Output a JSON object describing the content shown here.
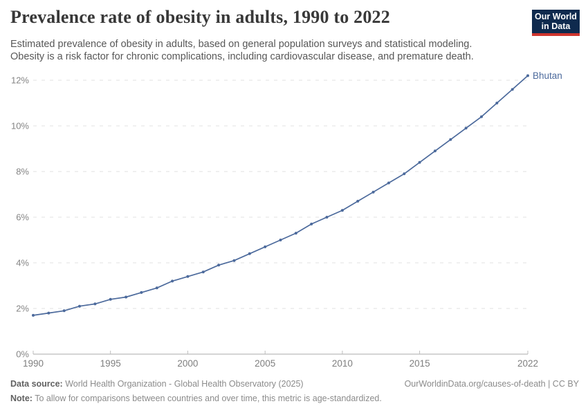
{
  "header": {
    "title": "Prevalence rate of obesity in adults, 1990 to 2022",
    "subtitle_line1": "Estimated prevalence of obesity in adults, based on general population surveys and statistical modeling.",
    "subtitle_line2": "Obesity is a risk factor for chronic complications, including cardiovascular disease, and premature death.",
    "logo": {
      "line1": "Our World",
      "line2": "in Data",
      "bg_color": "#0f2a4e",
      "accent_color": "#cf352e"
    }
  },
  "chart_data": {
    "type": "line",
    "title": "Prevalence rate of obesity in adults, 1990 to 2022",
    "xlabel": "",
    "ylabel": "",
    "xlim": [
      1990,
      2022
    ],
    "ylim": [
      0,
      12
    ],
    "grid": "horizontal-dashed",
    "legend_position": "end-of-line-label",
    "x_ticks": [
      1990,
      1995,
      2000,
      2005,
      2010,
      2015,
      2022
    ],
    "y_ticks": [
      0,
      2,
      4,
      6,
      8,
      10,
      12
    ],
    "y_tick_labels": [
      "0%",
      "2%",
      "4%",
      "6%",
      "8%",
      "10%",
      "12%"
    ],
    "x": [
      1990,
      1991,
      1992,
      1993,
      1994,
      1995,
      1996,
      1997,
      1998,
      1999,
      2000,
      2001,
      2002,
      2003,
      2004,
      2005,
      2006,
      2007,
      2008,
      2009,
      2010,
      2011,
      2012,
      2013,
      2014,
      2015,
      2016,
      2017,
      2018,
      2019,
      2020,
      2021,
      2022
    ],
    "series": [
      {
        "name": "Bhutan",
        "color": "#4c6a9c",
        "values": [
          1.7,
          1.8,
          1.9,
          2.1,
          2.2,
          2.4,
          2.5,
          2.7,
          2.9,
          3.2,
          3.4,
          3.6,
          3.9,
          4.1,
          4.4,
          4.7,
          5.0,
          5.3,
          5.7,
          6.0,
          6.3,
          6.7,
          7.1,
          7.5,
          7.9,
          8.4,
          8.9,
          9.4,
          9.9,
          10.4,
          11.0,
          11.6,
          12.2
        ]
      }
    ]
  },
  "footer": {
    "data_source_label": "Data source:",
    "data_source_text": "World Health Organization - Global Health Observatory (2025)",
    "note_label": "Note:",
    "note_text": "To allow for comparisons between countries and over time, this metric is age-standardized.",
    "credit": "OurWorldinData.org/causes-of-death | CC BY"
  }
}
